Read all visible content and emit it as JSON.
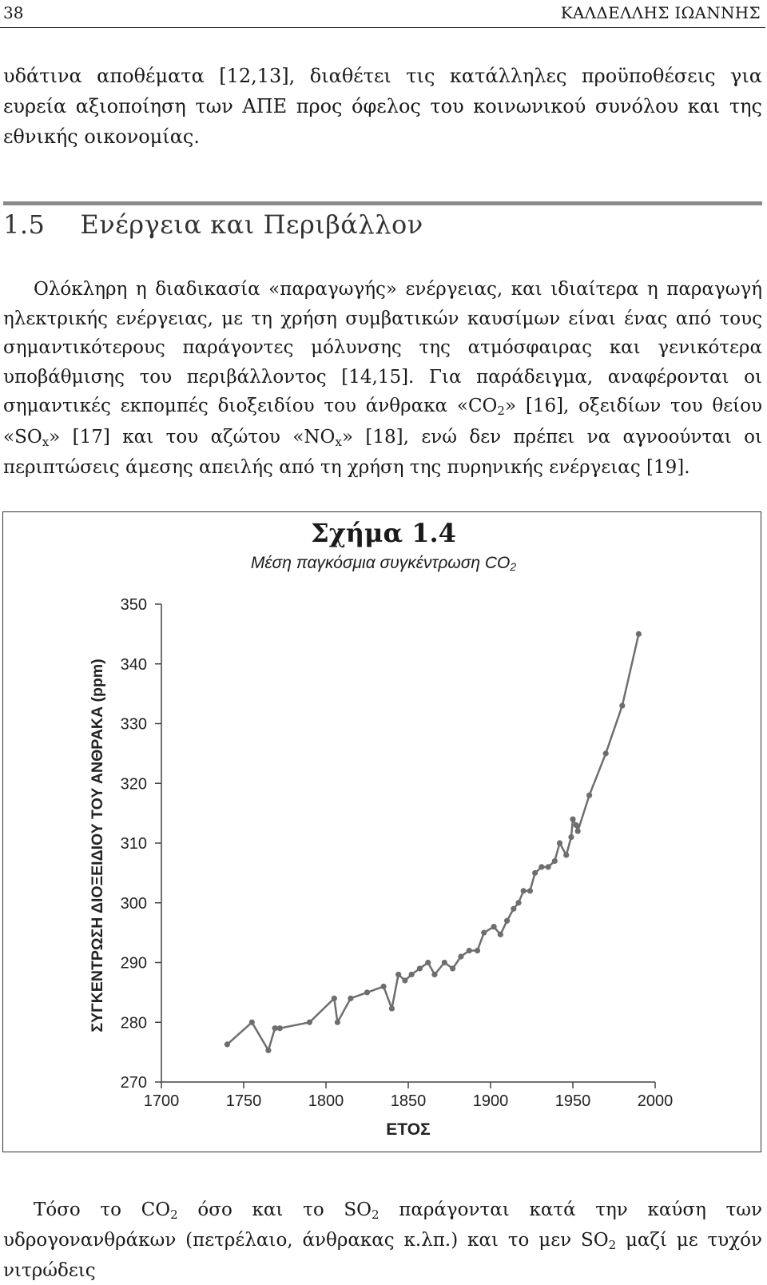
{
  "header": {
    "page_number": "38",
    "author": "ΚΑΛΔΕΛΛΗΣ ΙΩΑΝΝΗΣ"
  },
  "intro_paragraph": "υδάτινα αποθέματα [12,13], διαθέτει τις κατάλληλες προϋποθέσεις για ευρεία αξιοποίηση των ΑΠΕ προς όφελος του κοινωνικού συνόλου και της εθνικής οικονομίας.",
  "section": {
    "number": "1.5",
    "title": "Ενέργεια και Περιβάλλον",
    "paragraph": {
      "part1": "Ολόκληρη η διαδικασία «παραγωγής» ενέργειας, και ιδιαίτερα η παραγωγή ηλεκτρικής ενέργειας, με τη χρήση συμβατικών καυσίμων είναι ένας από τους σημαντικότερους παράγοντες μόλυνσης της ατμόσφαιρας και γενικότερα υποβάθμισης του περιβάλλοντος [14,15]. Για παράδειγμα, αναφέρονται οι σημαντικές εκπομπές διοξειδίου του άνθρακα «CO",
      "sub1": "2",
      "part2": "» [16], οξειδίων του θείου «SO",
      "sub2": "x",
      "part3": "» [17] και του αζώτου «NO",
      "sub3": "x",
      "part4": "» [18], ενώ δεν πρέπει να αγνοούνται οι περιπτώσεις άμεσης απειλής από τη χρήση της πυρηνικής ενέργειας [19]."
    }
  },
  "figure": {
    "title": "Σχήμα 1.4",
    "subtitle": "Μέση παγκόσμια συγκέντρωση CO",
    "subtitle_sub": "2"
  },
  "chart_data": {
    "type": "line",
    "xlabel": "ΕΤΟΣ",
    "ylabel": "ΣΥΓΚΕΝΤΡΩΣΗ ΔΙΟΞΕΙΔΙΟΥ ΤΟΥ ΑΝΘΡΑΚΑ (ppm)",
    "xlim": [
      1700,
      2000
    ],
    "ylim": [
      270,
      350
    ],
    "x_ticks": [
      "1700",
      "1750",
      "1800",
      "1850",
      "1900",
      "1950",
      "2000"
    ],
    "y_ticks": [
      "270",
      "280",
      "290",
      "300",
      "310",
      "320",
      "330",
      "340",
      "350"
    ],
    "grid": false,
    "series": [
      {
        "points": [
          [
            1740,
            276.3
          ],
          [
            1755,
            280.0
          ],
          [
            1765,
            275.3
          ],
          [
            1769,
            279.0
          ],
          [
            1772,
            279.0
          ],
          [
            1790,
            280.0
          ],
          [
            1805,
            284.0
          ],
          [
            1807,
            280.0
          ],
          [
            1815,
            284.0
          ],
          [
            1825,
            285.0
          ],
          [
            1835,
            286.0
          ],
          [
            1840,
            282.3
          ],
          [
            1844,
            288.0
          ],
          [
            1848,
            287.0
          ],
          [
            1852,
            288.0
          ],
          [
            1857,
            289.0
          ],
          [
            1862,
            290.0
          ],
          [
            1866,
            288.0
          ],
          [
            1872,
            290.0
          ],
          [
            1877,
            289.0
          ],
          [
            1882,
            291.0
          ],
          [
            1887,
            292.0
          ],
          [
            1892,
            292.0
          ],
          [
            1896,
            295.0
          ],
          [
            1902,
            296.0
          ],
          [
            1906,
            294.7
          ],
          [
            1910,
            297.0
          ],
          [
            1914,
            299.0
          ],
          [
            1917,
            300.0
          ],
          [
            1920,
            302.0
          ],
          [
            1924,
            302.0
          ],
          [
            1927,
            305.0
          ],
          [
            1931,
            306.0
          ],
          [
            1935,
            306.0
          ],
          [
            1939,
            307.0
          ],
          [
            1942,
            310.0
          ],
          [
            1946,
            308.0
          ],
          [
            1949,
            311.0
          ],
          [
            1950,
            314.0
          ],
          [
            1952,
            313.0
          ],
          [
            1953,
            312.0
          ],
          [
            1960,
            318.0
          ],
          [
            1970,
            325.0
          ],
          [
            1980,
            333.0
          ],
          [
            1990,
            345.0
          ]
        ]
      }
    ]
  },
  "closing_paragraph": {
    "part1": "Τόσο το CO",
    "sub1": "2",
    "part2": " όσο και το SO",
    "sub2": "2",
    "part3": " παράγονται κατά την καύση των υδρογονανθράκων (πετρέλαιο, άνθρακας κ.λπ.) και το μεν SO",
    "sub3": "2",
    "part4": " μαζί με τυχόν νιτρώδεις"
  }
}
